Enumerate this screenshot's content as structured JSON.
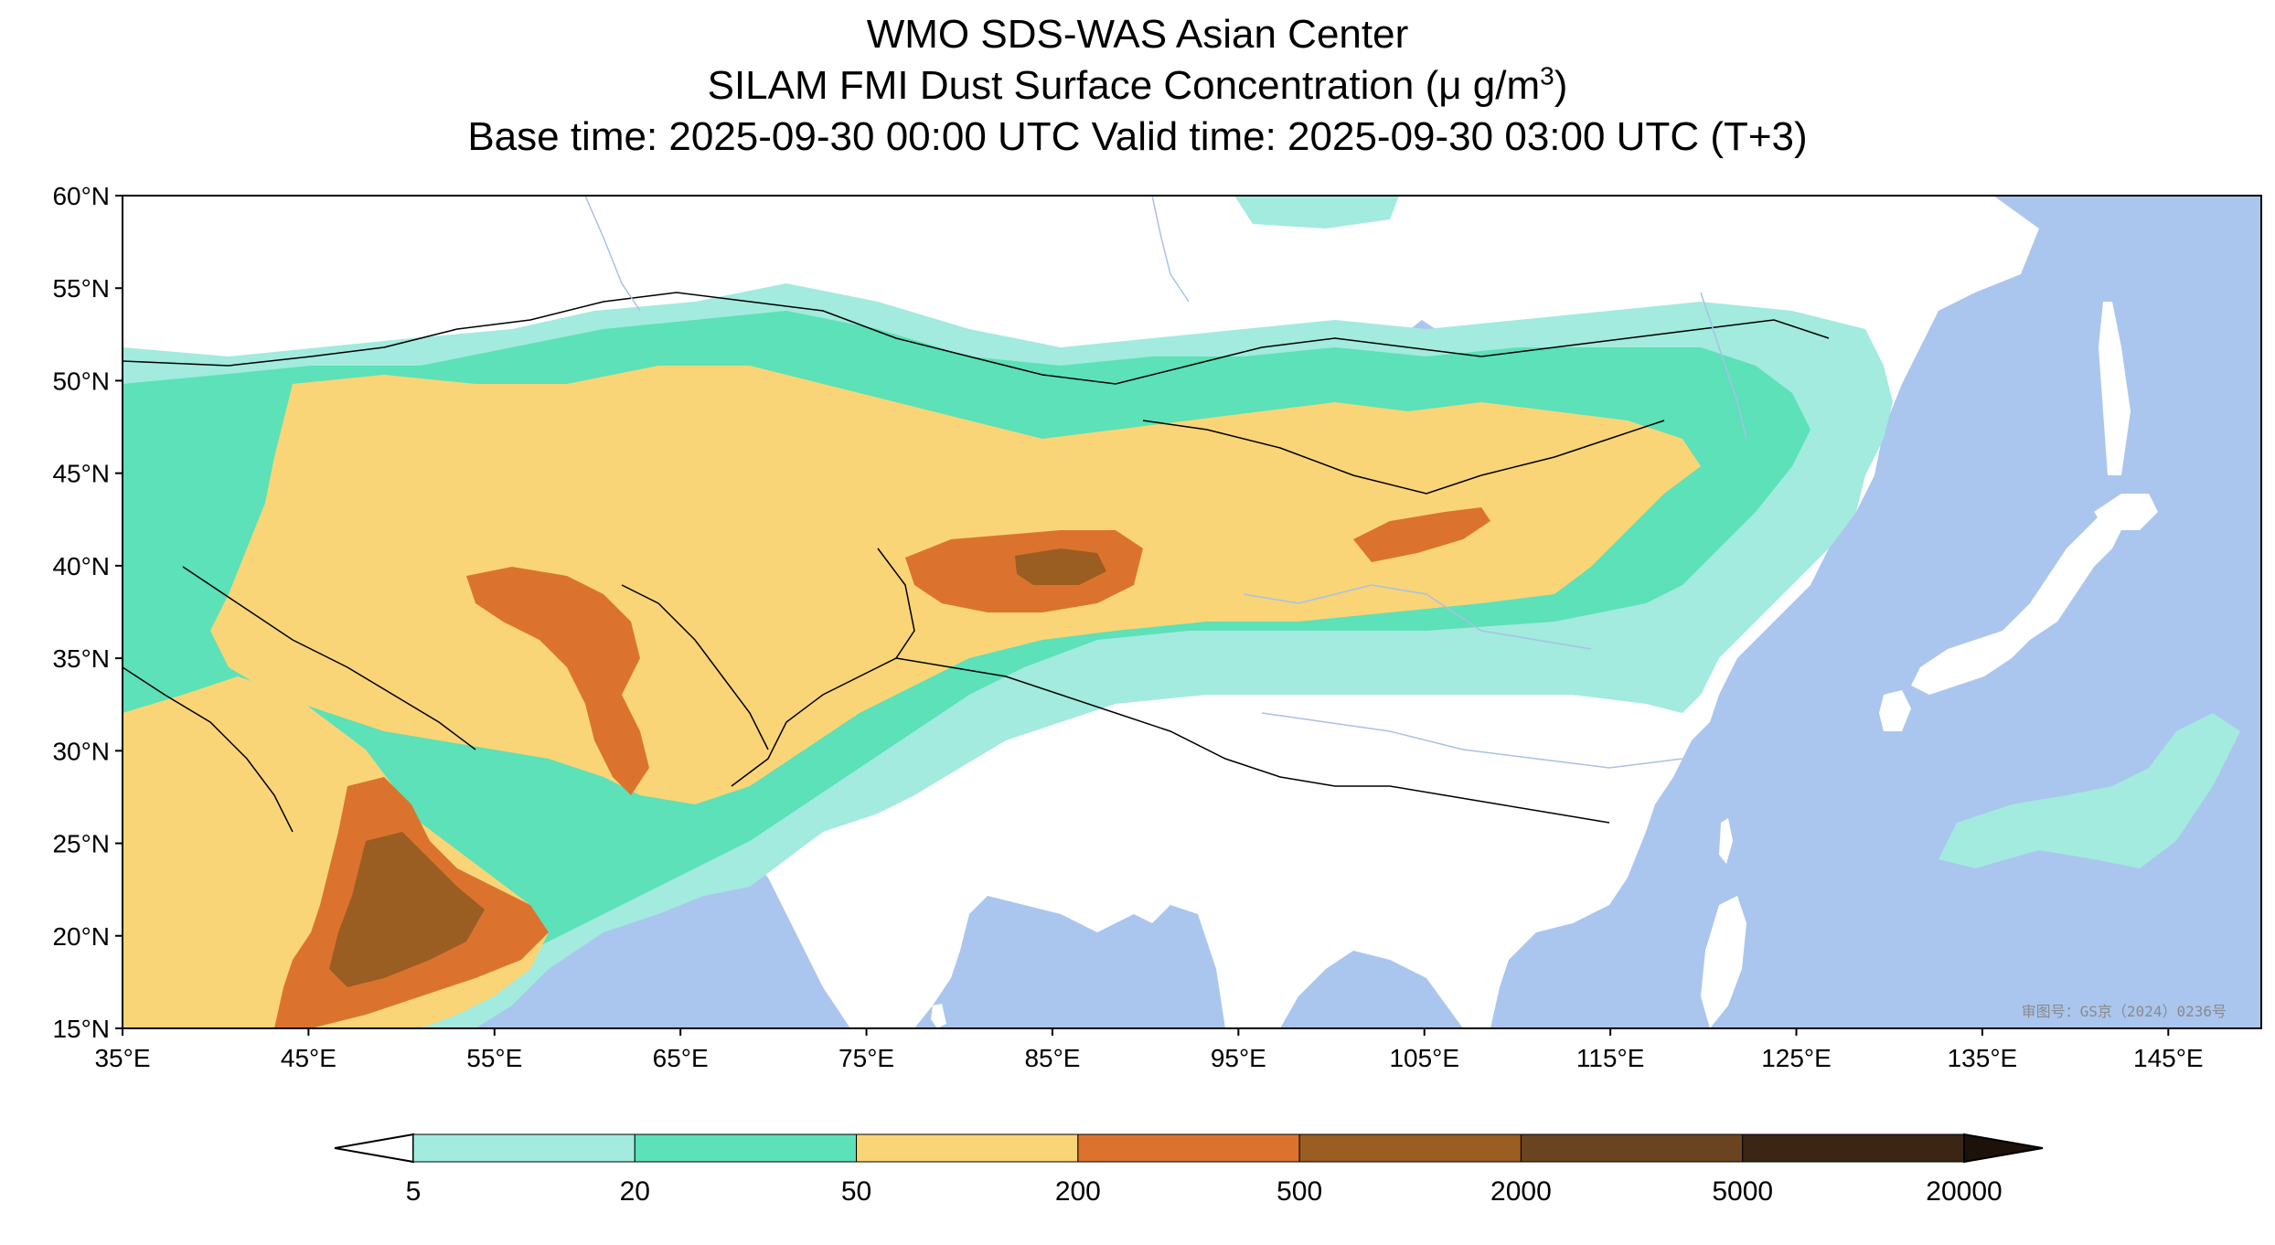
{
  "header": {
    "line1": "WMO SDS-WAS Asian Center",
    "line2_main": "SILAM FMI Dust Surface Concentration (μ g/m",
    "line2_sup": "3",
    "line2_end": ")",
    "line3": "Base time: 2025-09-30 00:00 UTC Valid time: 2025-09-30 03:00 UTC (T+3)"
  },
  "map": {
    "lon_range": [
      35,
      150
    ],
    "lat_range": [
      15,
      60
    ],
    "lon_ticks": [
      "35°E",
      "45°E",
      "55°E",
      "65°E",
      "75°E",
      "85°E",
      "95°E",
      "105°E",
      "115°E",
      "125°E",
      "135°E",
      "145°E"
    ],
    "lat_ticks": [
      "60°N",
      "55°N",
      "50°N",
      "45°N",
      "40°N",
      "35°N",
      "30°N",
      "25°N",
      "20°N",
      "15°N"
    ],
    "approval_text": "审图号：GS京（2024）0236号",
    "colors": {
      "ocean": "#aac6ee",
      "land": "#ffffff",
      "border": "#000000",
      "river": "#a9c1e6"
    }
  },
  "colorbar": {
    "tick_labels": [
      "5",
      "20",
      "50",
      "200",
      "500",
      "2000",
      "5000",
      "20000"
    ],
    "colors": [
      "#a2ebde",
      "#5ce1b8",
      "#f9d577",
      "#db732f",
      "#9a5d22",
      "#6a4420",
      "#3b2514"
    ],
    "under_color": "#ffffff",
    "over_color": "#1c120a"
  },
  "regions": [
    {
      "name": "dust-outer-5",
      "level": 0
    },
    {
      "name": "dust-20",
      "level": 1
    },
    {
      "name": "dust-50",
      "level": 2
    },
    {
      "name": "dust-200",
      "level": 3
    },
    {
      "name": "dust-500",
      "level": 4
    }
  ]
}
